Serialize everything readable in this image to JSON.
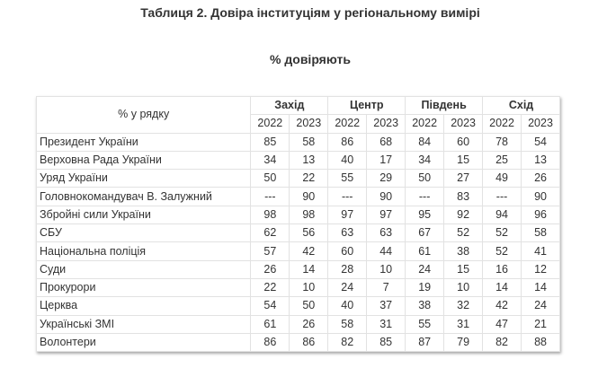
{
  "header": {
    "title": "Таблиця 2. Довіра інституціям у регіональному вимірі",
    "subtitle": "% довіряють"
  },
  "table": {
    "corner": "% у рядку",
    "regions": [
      "Захід",
      "Центр",
      "Південь",
      "Схід"
    ],
    "years": [
      2022,
      2023,
      2022,
      2023,
      2022,
      2023,
      2022,
      2023
    ],
    "rows": [
      [
        "Президент України",
        85,
        58,
        86,
        68,
        84,
        60,
        78,
        54
      ],
      [
        "Верховна Рада України",
        34,
        13,
        40,
        17,
        34,
        15,
        25,
        13
      ],
      [
        "Уряд України",
        50,
        22,
        55,
        29,
        50,
        27,
        49,
        26
      ],
      [
        "Головнокомандувач В. Залужний",
        "---",
        90,
        "---",
        90,
        "---",
        83,
        "---",
        90
      ],
      [
        "Збройні сили України",
        98,
        98,
        97,
        97,
        95,
        92,
        94,
        96
      ],
      [
        "СБУ",
        62,
        56,
        63,
        63,
        67,
        52,
        52,
        58
      ],
      [
        "Національна поліція",
        57,
        42,
        60,
        44,
        61,
        38,
        52,
        41
      ],
      [
        "Суди",
        26,
        14,
        28,
        10,
        24,
        15,
        16,
        12
      ],
      [
        "Прокурори",
        22,
        10,
        24,
        7,
        19,
        10,
        14,
        14
      ],
      [
        "Церква",
        54,
        50,
        40,
        37,
        38,
        32,
        42,
        24
      ],
      [
        "Українські ЗМІ",
        61,
        26,
        58,
        31,
        55,
        31,
        47,
        21
      ],
      [
        "Волонтери",
        86,
        86,
        82,
        85,
        87,
        79,
        82,
        88
      ]
    ]
  }
}
